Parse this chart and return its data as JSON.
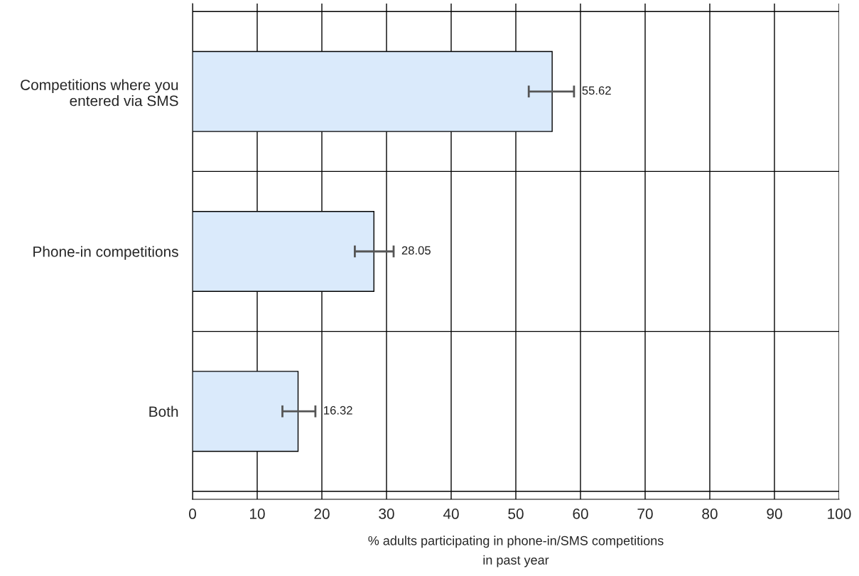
{
  "chart_data": {
    "type": "bar",
    "orientation": "horizontal",
    "xlabel": "% adults participating in phone-in/SMS competitions\nin past year",
    "categories": [
      "Competitions where you\nentered via SMS",
      "Phone-in competitions",
      "Both"
    ],
    "values": [
      55.62,
      28.05,
      16.32
    ],
    "errors": [
      [
        52.0,
        59.0
      ],
      [
        25.1,
        31.1
      ],
      [
        13.9,
        19.0
      ]
    ],
    "color": "#daeafb",
    "xlim": [
      0,
      100
    ],
    "xticks": [
      0,
      10,
      20,
      30,
      40,
      50,
      60,
      70,
      80,
      90,
      100
    ],
    "grid": true,
    "data_labels": true
  }
}
